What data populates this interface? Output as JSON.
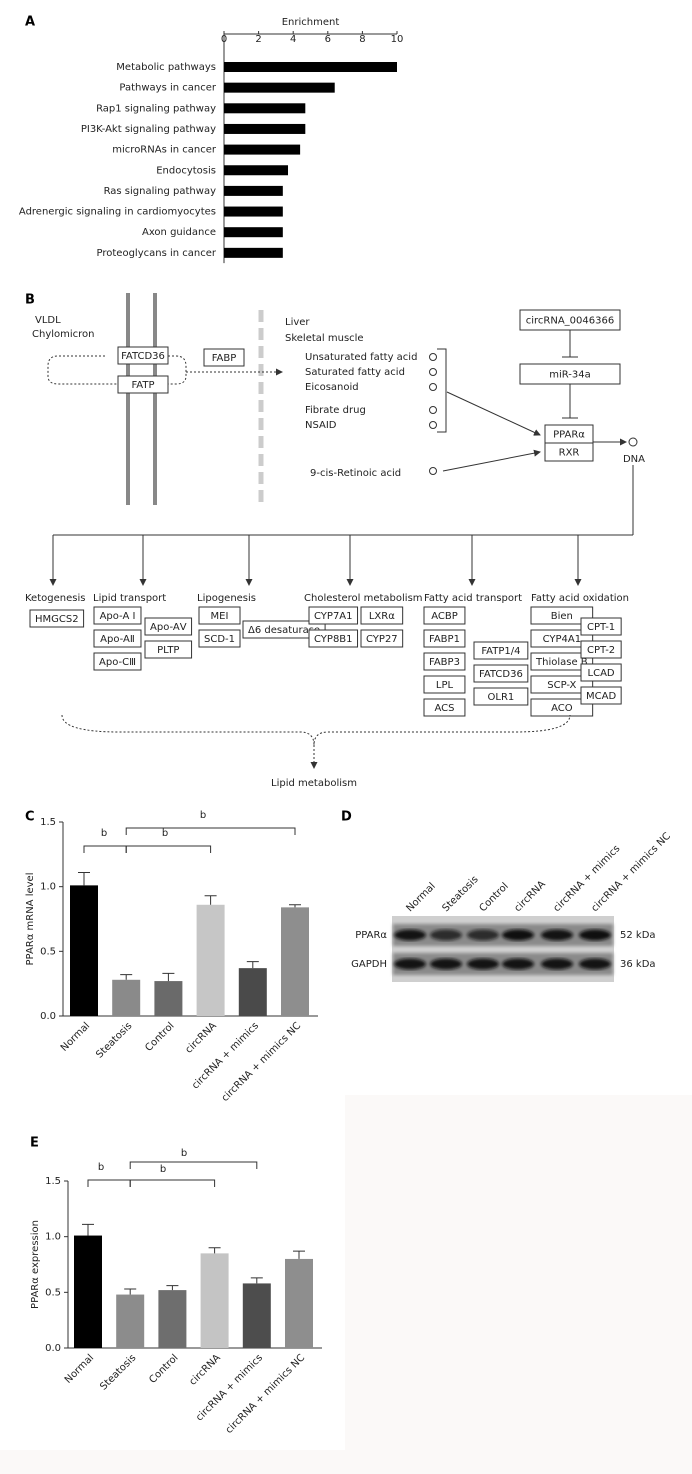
{
  "panel_labels": [
    "A",
    "B",
    "C",
    "D",
    "E"
  ],
  "chart_data": [
    {
      "type": "barh",
      "xlabel": "Enrichment",
      "categories": [
        "Metabolic pathways",
        "Pathways in cancer",
        "Rap1 signaling pathway",
        "PI3K-Akt signaling pathway",
        "microRNAs in cancer",
        "Endocytosis",
        "Ras signaling pathway",
        "Adrenergic signaling in cardiomyocytes",
        "Axon guidance",
        "Proteoglycans in cancer"
      ],
      "values": [
        10,
        6.4,
        4.7,
        4.7,
        4.4,
        3.7,
        3.4,
        3.4,
        3.4,
        3.4
      ],
      "color": "#000000",
      "xlim": [
        0,
        10
      ],
      "xticks": [
        0,
        2,
        4,
        6,
        8,
        10
      ]
    },
    {
      "type": "bar",
      "ylabel": "PPARα mRNA level",
      "categories": [
        "Normal",
        "Steatosis",
        "Control",
        "circRNA",
        "circRNA + mimics",
        "circRNA + mimics NC"
      ],
      "values": [
        1.01,
        0.28,
        0.27,
        0.86,
        0.37,
        0.84
      ],
      "errors": [
        0.1,
        0.04,
        0.06,
        0.07,
        0.05,
        0.02
      ],
      "colors": [
        "#000000",
        "#8a8a8a",
        "#6a6a6a",
        "#c6c6c6",
        "#4a4a4a",
        "#8e8e8e"
      ],
      "ylim": [
        0,
        1.5
      ],
      "yticks": [
        {
          "value": 0,
          "label": "0.0"
        },
        0.5,
        {
          "value": 1,
          "label": "1.0"
        },
        1.5
      ],
      "annotations": [
        "b",
        "b",
        "b"
      ]
    },
    {
      "type": "bar",
      "ylabel": "PPARα expression",
      "categories": [
        "Normal",
        "Steatosis",
        "Control",
        "circRNA",
        "circRNA + mimics",
        "circRNA + mimics NC"
      ],
      "values": [
        1.01,
        0.48,
        0.52,
        0.85,
        0.58,
        0.8
      ],
      "errors": [
        0.1,
        0.05,
        0.04,
        0.05,
        0.05,
        0.07
      ],
      "colors": [
        "#000000",
        "#8c8c8c",
        "#6e6e6e",
        "#c4c4c4",
        "#4d4d4d",
        "#8e8e8e"
      ],
      "ylim": [
        0,
        1.5
      ],
      "yticks": [
        {
          "value": 0,
          "label": "0.0"
        },
        0.5,
        {
          "value": 1,
          "label": "1.0"
        },
        1.5
      ],
      "annotations": [
        "b",
        "b",
        "b"
      ]
    }
  ],
  "diagram": {
    "source": [
      "VLDL",
      "Chylomicron"
    ],
    "transporters": [
      "FATCD36",
      "FATP"
    ],
    "binding": "FABP",
    "tissue": [
      "Liver",
      "Skeletal muscle"
    ],
    "ligands": [
      "Unsaturated fatty acid",
      "Saturated fatty acid",
      "Eicosanoid",
      "Fibrate drug",
      "NSAID"
    ],
    "retinoid": "9-cis-Retinoic acid",
    "regulators": [
      "circRNA_0046366",
      "miR-34a"
    ],
    "receptors": [
      "PPARα",
      "RXR"
    ],
    "target": "DNA",
    "groups": [
      {
        "name": "Ketogenesis",
        "columns": [
          [
            "HMGCS2"
          ]
        ]
      },
      {
        "name": "Lipid transport",
        "columns": [
          [
            "Apo-A Ⅰ",
            "Apo-AⅡ",
            "Apo-CⅢ"
          ],
          [
            "Apo-AⅤ",
            "PLTP"
          ]
        ]
      },
      {
        "name": "Lipogenesis",
        "columns": [
          [
            "MEI",
            "SCD-1"
          ],
          [
            "Δ6 desaturase"
          ]
        ]
      },
      {
        "name": "Cholesterol metabolism",
        "columns": [
          [
            "CYP7A1",
            "CYP8B1"
          ],
          [
            "LXRα",
            "CYP27"
          ]
        ]
      },
      {
        "name": "Fatty acid transport",
        "columns": [
          [
            "ACBP",
            "FABP1",
            "FABP3",
            "LPL",
            "ACS"
          ],
          [
            "FATP1/4",
            "FATCD36",
            "OLR1"
          ]
        ]
      },
      {
        "name": "Fatty acid oxidation",
        "columns": [
          [
            "Bien",
            "CYP4A1",
            "Thiolase B",
            "SCP-X",
            "ACO"
          ],
          [
            "CPT-1",
            "CPT-2",
            "LCAD",
            "MCAD"
          ]
        ]
      }
    ],
    "outcome": "Lipid metabolism"
  },
  "blot": {
    "lanes": [
      "Normal",
      "Steatosis",
      "Control",
      "circRNA",
      "circRNA + mimics",
      "circRNA + mimics NC"
    ],
    "rows": [
      {
        "name": "PPARα",
        "size": "52 kDa"
      },
      {
        "name": "GAPDH",
        "size": "36 kDa"
      }
    ]
  }
}
